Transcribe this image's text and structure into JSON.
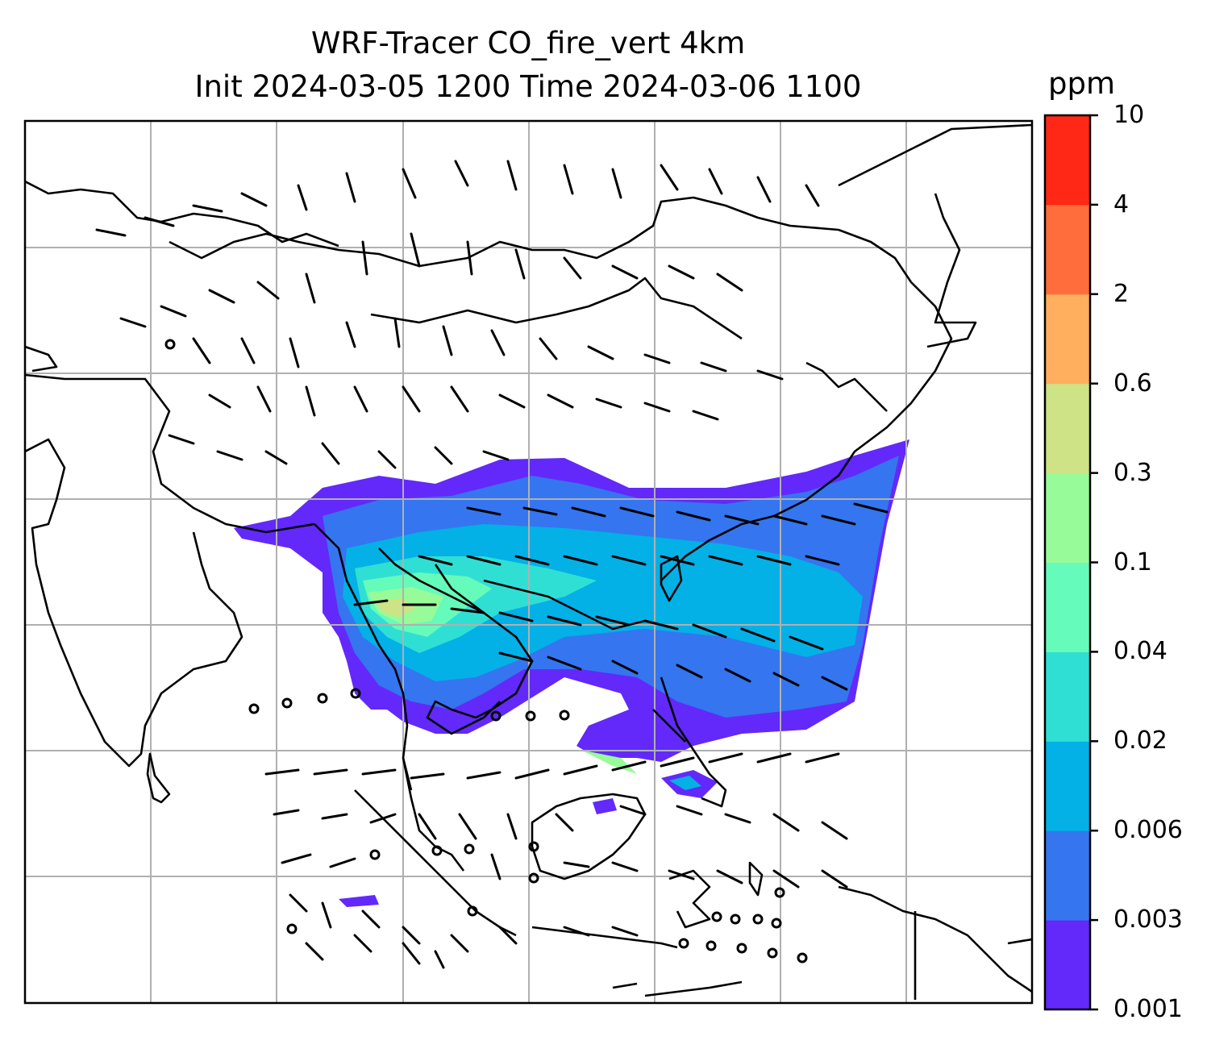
{
  "title_line1": "WRF-Tracer CO_fire_vert 4km",
  "title_line2": "Init 2024-03-05 1200 Time 2024-03-06 1100",
  "colorbar": {
    "unit": "ppm",
    "levels": [
      "0.001",
      "0.003",
      "0.006",
      "0.02",
      "0.04",
      "0.1",
      "0.3",
      "0.6",
      "2",
      "4",
      "10"
    ],
    "colors": [
      "#6229fa",
      "#3575f0",
      "#03b1e6",
      "#30dfd4",
      "#65fbba",
      "#98fb99",
      "#cde385",
      "#ffaf5d",
      "#ff6d3c",
      "#ff2816"
    ]
  }
}
